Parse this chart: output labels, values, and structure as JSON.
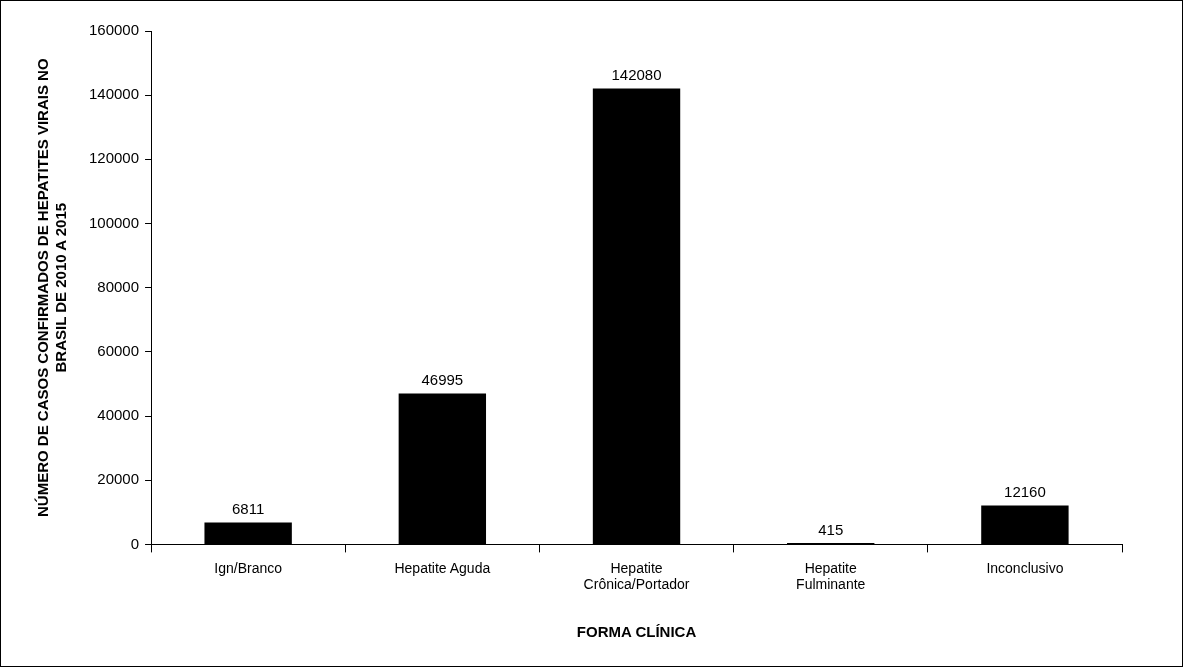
{
  "chart_data": {
    "type": "bar",
    "xlabel": "FORMA CLÍNICA",
    "ylabel": "NÚMERO DE CASOS CONFIRMADOS DE HEPATITES VIRAIS NO BRASIL DE 2010 A 2015",
    "categories": [
      "Ign/Branco",
      "Hepatite Aguda",
      "Hepatite Crônica/Portador",
      "Hepatite Fulminante",
      "Inconclusivo"
    ],
    "values": [
      6811,
      46995,
      142080,
      415,
      12160
    ],
    "color": "#000000",
    "ylim": [
      0,
      160000
    ],
    "yticks": [
      0,
      20000,
      40000,
      60000,
      80000,
      100000,
      120000,
      140000,
      160000
    ],
    "data_labels": true,
    "grid": false,
    "legend": false
  }
}
